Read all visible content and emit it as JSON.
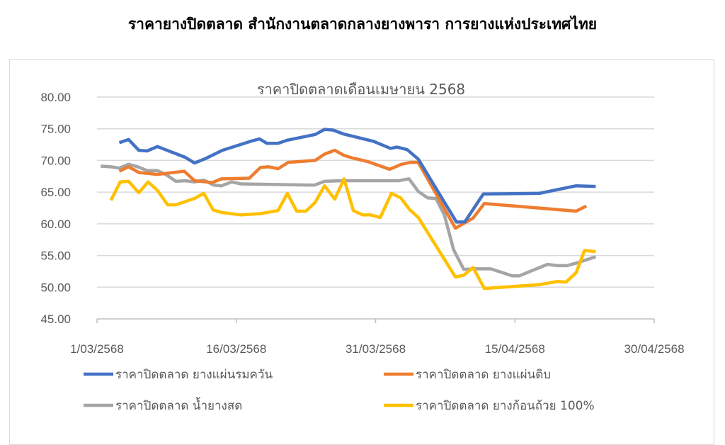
{
  "header": {
    "title": "ราคายางปิดตลาด สำนักงานตลาดกลางยางพารา การยางแห่งประเทศไทย"
  },
  "chart_data": {
    "type": "line",
    "title": "ราคาปิดตลาดเดือนเมษายน 2568",
    "xlabel": "",
    "ylabel": "",
    "x_unit": "days since 1/03/2568",
    "xlim": [
      0,
      60
    ],
    "ylim": [
      45,
      80
    ],
    "grid": true,
    "legend_position": "bottom",
    "x_ticks": [
      {
        "value": 0,
        "label": "1/03/2568"
      },
      {
        "value": 15,
        "label": "16/03/2568"
      },
      {
        "value": 30,
        "label": "31/03/2568"
      },
      {
        "value": 45,
        "label": "15/04/2568"
      },
      {
        "value": 60,
        "label": "30/04/2568"
      }
    ],
    "y_ticks": [
      {
        "value": 45,
        "label": "45.00"
      },
      {
        "value": 50,
        "label": "50.00"
      },
      {
        "value": 55,
        "label": "55.00"
      },
      {
        "value": 60,
        "label": "60.00"
      },
      {
        "value": 65,
        "label": "65.00"
      },
      {
        "value": 70,
        "label": "70.00"
      },
      {
        "value": 75,
        "label": "75.00"
      },
      {
        "value": 80,
        "label": "80.00"
      }
    ],
    "series": [
      {
        "name": "ราคาปิดตลาด  ยางแผ่นรมควัน",
        "color": "#4472c4",
        "points": [
          [
            2.4,
            72.8
          ],
          [
            3.4,
            73.3
          ],
          [
            4.5,
            71.6
          ],
          [
            5.4,
            71.5
          ],
          [
            6.5,
            72.2
          ],
          [
            9.5,
            70.5
          ],
          [
            10.5,
            69.6
          ],
          [
            11.7,
            70.3
          ],
          [
            13.5,
            71.6
          ],
          [
            16.5,
            73.0
          ],
          [
            17.5,
            73.4
          ],
          [
            18.3,
            72.7
          ],
          [
            19.5,
            72.7
          ],
          [
            20.5,
            73.2
          ],
          [
            23.5,
            74.1
          ],
          [
            24.5,
            74.9
          ],
          [
            25.4,
            74.8
          ],
          [
            26.5,
            74.2
          ],
          [
            29.8,
            73.0
          ],
          [
            31.6,
            71.9
          ],
          [
            32.3,
            72.1
          ],
          [
            33.4,
            71.7
          ],
          [
            34.6,
            70.2
          ],
          [
            38.7,
            60.3
          ],
          [
            39.6,
            60.3
          ],
          [
            41.6,
            64.7
          ],
          [
            47.6,
            64.8
          ],
          [
            51.6,
            66.0
          ],
          [
            53.7,
            65.9
          ]
        ]
      },
      {
        "name": "ราคาปิดตลาด  ยางแผ่นดิบ",
        "color": "#ed7d31",
        "points": [
          [
            2.4,
            68.3
          ],
          [
            3.4,
            69.0
          ],
          [
            4.5,
            68.1
          ],
          [
            6.5,
            67.8
          ],
          [
            9.4,
            68.3
          ],
          [
            10.5,
            66.8
          ],
          [
            12.4,
            66.5
          ],
          [
            13.4,
            67.1
          ],
          [
            16.4,
            67.2
          ],
          [
            17.6,
            68.9
          ],
          [
            18.5,
            69.0
          ],
          [
            19.5,
            68.7
          ],
          [
            20.6,
            69.7
          ],
          [
            23.5,
            70.0
          ],
          [
            24.5,
            71.0
          ],
          [
            25.6,
            71.6
          ],
          [
            26.6,
            70.8
          ],
          [
            27.5,
            70.4
          ],
          [
            29.2,
            69.8
          ],
          [
            31.5,
            68.6
          ],
          [
            32.8,
            69.4
          ],
          [
            33.8,
            69.7
          ],
          [
            34.6,
            69.7
          ],
          [
            38.6,
            59.3
          ],
          [
            40.5,
            60.9
          ],
          [
            41.7,
            63.2
          ],
          [
            51.6,
            62.0
          ],
          [
            52.7,
            62.8
          ]
        ]
      },
      {
        "name": "ราคาปิดตลาด  น้ำยางสด",
        "color": "#a5a5a5",
        "points": [
          [
            0.4,
            69.1
          ],
          [
            1.5,
            69.0
          ],
          [
            2.4,
            68.8
          ],
          [
            3.4,
            69.4
          ],
          [
            4.4,
            69.0
          ],
          [
            5.4,
            68.4
          ],
          [
            6.5,
            68.4
          ],
          [
            7.5,
            67.7
          ],
          [
            8.5,
            66.7
          ],
          [
            9.5,
            66.8
          ],
          [
            10.5,
            66.6
          ],
          [
            11.5,
            66.9
          ],
          [
            12.6,
            66.1
          ],
          [
            13.4,
            66.0
          ],
          [
            14.5,
            66.6
          ],
          [
            15.5,
            66.3
          ],
          [
            23.4,
            66.1
          ],
          [
            24.5,
            66.7
          ],
          [
            26.4,
            66.8
          ],
          [
            30.0,
            66.8
          ],
          [
            32.5,
            66.8
          ],
          [
            33.6,
            67.1
          ],
          [
            34.6,
            65.1
          ],
          [
            35.6,
            64.1
          ],
          [
            36.5,
            64.0
          ],
          [
            37.4,
            61.4
          ],
          [
            38.4,
            55.9
          ],
          [
            39.5,
            52.8
          ],
          [
            40.7,
            52.9
          ],
          [
            42.4,
            52.9
          ],
          [
            44.7,
            51.8
          ],
          [
            45.5,
            51.8
          ],
          [
            47.3,
            52.9
          ],
          [
            48.5,
            53.6
          ],
          [
            49.6,
            53.4
          ],
          [
            50.6,
            53.4
          ],
          [
            51.6,
            53.8
          ],
          [
            53.7,
            54.8
          ]
        ]
      },
      {
        "name": "ราคาปิดตลาด  ยางก้อนถ้วย 100%",
        "color": "#ffc000",
        "points": [
          [
            1.5,
            63.7
          ],
          [
            2.5,
            66.6
          ],
          [
            3.4,
            66.7
          ],
          [
            4.5,
            64.9
          ],
          [
            5.5,
            66.6
          ],
          [
            6.5,
            65.3
          ],
          [
            7.6,
            63.0
          ],
          [
            8.5,
            63.0
          ],
          [
            10.5,
            64.0
          ],
          [
            11.5,
            64.8
          ],
          [
            12.5,
            62.2
          ],
          [
            13.4,
            61.8
          ],
          [
            15.5,
            61.4
          ],
          [
            17.6,
            61.6
          ],
          [
            19.5,
            62.1
          ],
          [
            20.5,
            64.8
          ],
          [
            21.5,
            62.0
          ],
          [
            22.5,
            62.0
          ],
          [
            23.5,
            63.4
          ],
          [
            24.5,
            66.0
          ],
          [
            25.6,
            63.9
          ],
          [
            26.6,
            67.1
          ],
          [
            27.6,
            62.1
          ],
          [
            28.6,
            61.4
          ],
          [
            29.5,
            61.4
          ],
          [
            30.5,
            61.0
          ],
          [
            31.7,
            64.8
          ],
          [
            32.7,
            64.1
          ],
          [
            33.7,
            62.2
          ],
          [
            34.6,
            61.0
          ],
          [
            38.6,
            51.6
          ],
          [
            39.5,
            51.9
          ],
          [
            40.5,
            53.1
          ],
          [
            41.7,
            49.8
          ],
          [
            47.6,
            50.4
          ],
          [
            49.6,
            50.9
          ],
          [
            50.5,
            50.8
          ],
          [
            51.6,
            52.3
          ],
          [
            52.5,
            55.8
          ],
          [
            53.7,
            55.6
          ]
        ]
      }
    ]
  }
}
